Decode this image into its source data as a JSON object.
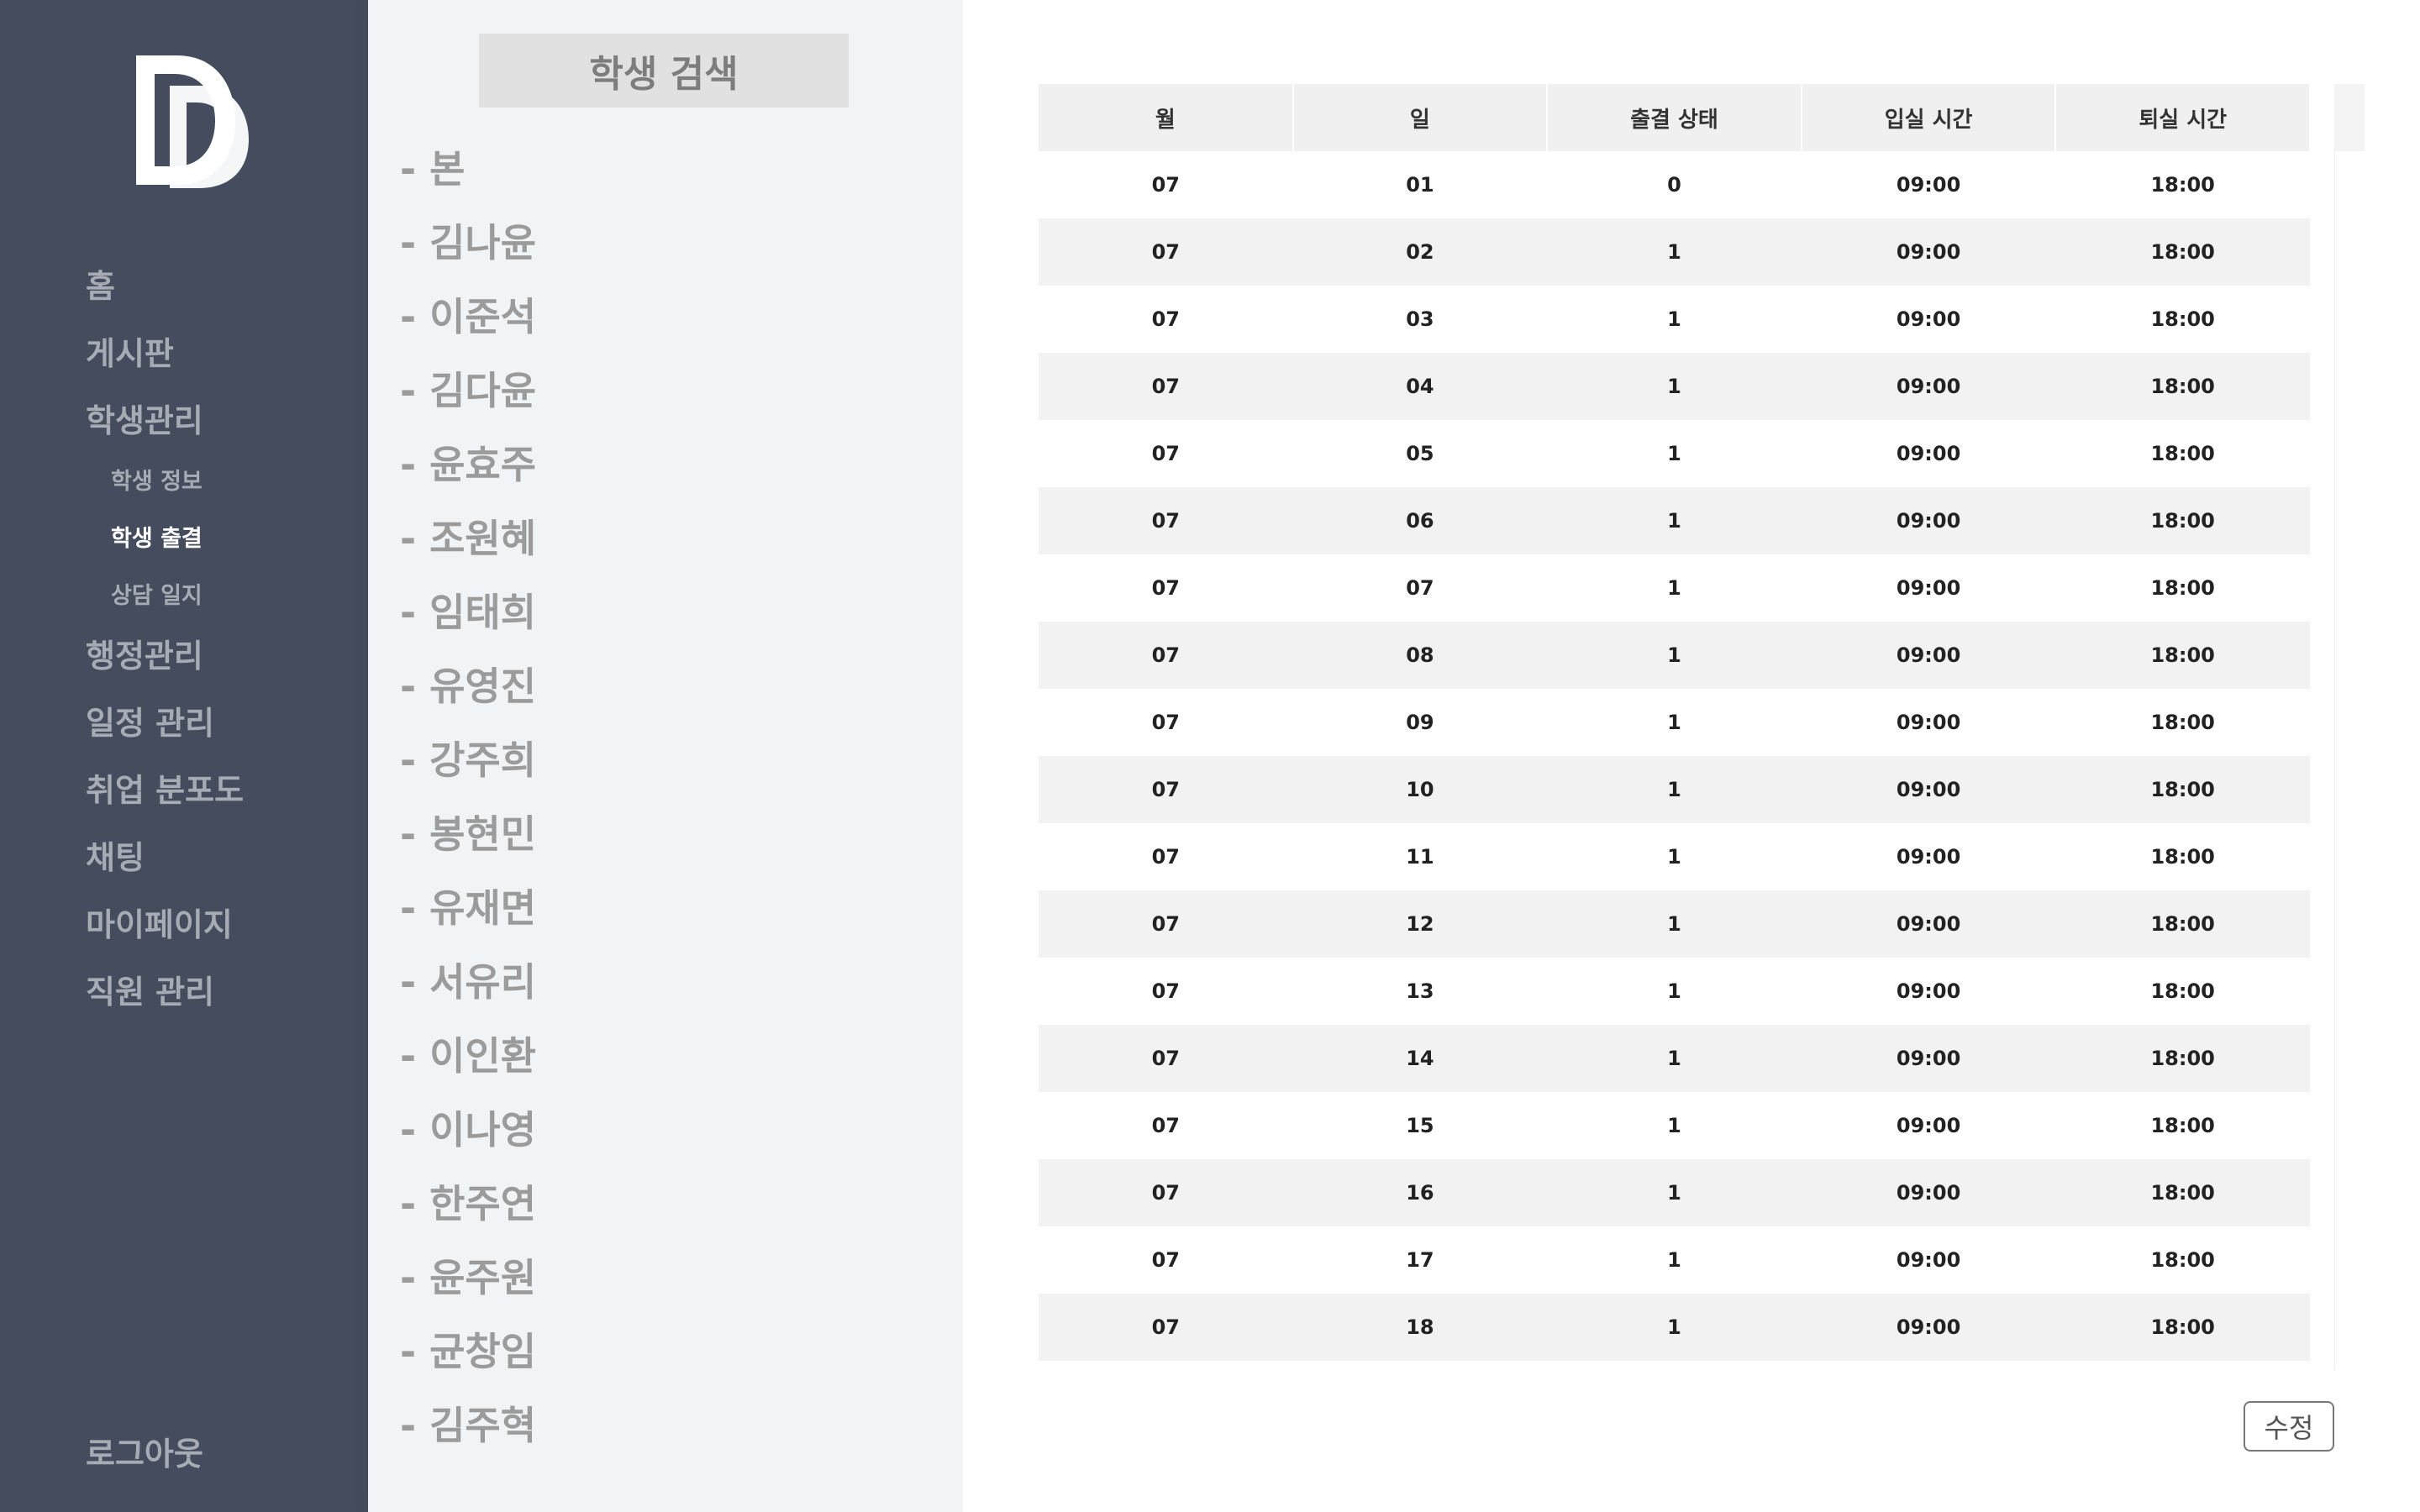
{
  "sidebar": {
    "items": [
      "홈",
      "게시판",
      "학생관리"
    ],
    "sub_items": [
      "학생 정보",
      "학생 출결",
      "상담 일지"
    ],
    "items_after": [
      "행정관리",
      "일정 관리",
      "취업 분포도",
      "채팅",
      "마이페이지",
      "직원 관리"
    ],
    "logout": "로그아웃",
    "active_sub": "학생 출결"
  },
  "student_panel": {
    "search_label": "학생 검색",
    "students": [
      "- 본",
      "- 김나윤",
      "- 이준석",
      "- 김다윤",
      "- 윤효주",
      "- 조원혜",
      "- 임태희",
      "- 유영진",
      "- 강주희",
      "- 봉현민",
      "- 유재면",
      "- 서유리",
      "- 이인환",
      "- 이나영",
      "- 한주연",
      "- 윤주원",
      "- 균창임",
      "- 김주혁"
    ]
  },
  "attendance": {
    "headers": [
      "월",
      "일",
      "출결 상태",
      "입실 시간",
      "퇴실 시간"
    ],
    "rows": [
      [
        "07",
        "01",
        "0",
        "09:00",
        "18:00"
      ],
      [
        "07",
        "02",
        "1",
        "09:00",
        "18:00"
      ],
      [
        "07",
        "03",
        "1",
        "09:00",
        "18:00"
      ],
      [
        "07",
        "04",
        "1",
        "09:00",
        "18:00"
      ],
      [
        "07",
        "05",
        "1",
        "09:00",
        "18:00"
      ],
      [
        "07",
        "06",
        "1",
        "09:00",
        "18:00"
      ],
      [
        "07",
        "07",
        "1",
        "09:00",
        "18:00"
      ],
      [
        "07",
        "08",
        "1",
        "09:00",
        "18:00"
      ],
      [
        "07",
        "09",
        "1",
        "09:00",
        "18:00"
      ],
      [
        "07",
        "10",
        "1",
        "09:00",
        "18:00"
      ],
      [
        "07",
        "11",
        "1",
        "09:00",
        "18:00"
      ],
      [
        "07",
        "12",
        "1",
        "09:00",
        "18:00"
      ],
      [
        "07",
        "13",
        "1",
        "09:00",
        "18:00"
      ],
      [
        "07",
        "14",
        "1",
        "09:00",
        "18:00"
      ],
      [
        "07",
        "15",
        "1",
        "09:00",
        "18:00"
      ],
      [
        "07",
        "16",
        "1",
        "09:00",
        "18:00"
      ],
      [
        "07",
        "17",
        "1",
        "09:00",
        "18:00"
      ],
      [
        "07",
        "18",
        "1",
        "09:00",
        "18:00"
      ]
    ],
    "edit_label": "수정"
  },
  "colors": {
    "sidebar_bg": "#444c5e",
    "panel_bg": "#f1f4f7",
    "header_bg": "#f0f0f0",
    "row_alt_bg": "#f2f2f2"
  }
}
